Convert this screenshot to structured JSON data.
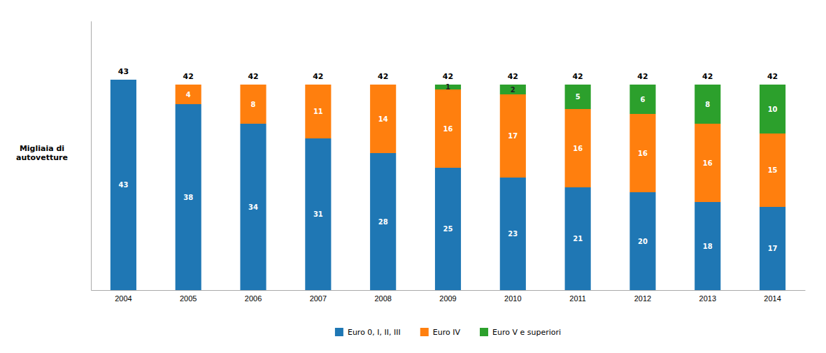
{
  "chart_data": {
    "type": "bar",
    "stacked": true,
    "ylabel": "Migliaia di\nautovetture",
    "categories": [
      "2004",
      "2005",
      "2006",
      "2007",
      "2008",
      "2009",
      "2010",
      "2011",
      "2012",
      "2013",
      "2014"
    ],
    "series": [
      {
        "name": "Euro 0, I, II, III",
        "values": [
          43,
          38,
          34,
          31,
          28,
          25,
          23,
          21,
          20,
          18,
          17
        ]
      },
      {
        "name": "Euro IV",
        "values": [
          0,
          4,
          8,
          11,
          14,
          16,
          17,
          16,
          16,
          16,
          15
        ]
      },
      {
        "name": "Euro V e superiori",
        "values": [
          0,
          0,
          0,
          0,
          0,
          1,
          2,
          5,
          6,
          8,
          10
        ]
      }
    ],
    "totals": [
      43,
      42,
      42,
      42,
      42,
      42,
      42,
      42,
      42,
      42,
      42
    ],
    "ylim": [
      0,
      55
    ],
    "grid": false,
    "legend": "bottom",
    "data_labels": true,
    "tick_labels": "x"
  }
}
